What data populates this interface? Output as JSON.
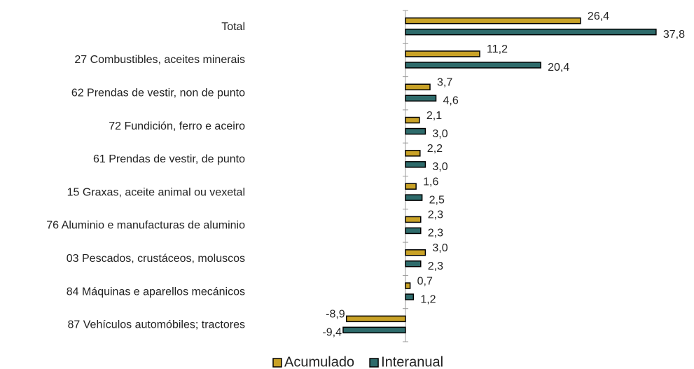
{
  "chart_data": {
    "type": "hbar",
    "categories": [
      "Total",
      "27 Combustibles, aceites minerais",
      "62 Prendas de vestir, non de punto",
      "72 Fundición, ferro e aceiro",
      "61 Prendas de vestir, de punto",
      "15 Graxas, aceite animal ou vexetal",
      "76 Aluminio e manufacturas de aluminio",
      "03 Pescados, crustáceos, moluscos",
      "84 Máquinas e aparellos mecánicos",
      "87 Vehículos automóbiles; tractores"
    ],
    "series": [
      {
        "name": "Acumulado",
        "color": "#c9a227",
        "values": [
          26.4,
          11.2,
          3.7,
          2.1,
          2.2,
          1.6,
          2.3,
          3.0,
          0.7,
          -8.9
        ],
        "value_labels": [
          "26,4",
          "11,2",
          "3,7",
          "2,1",
          "2,2",
          "1,6",
          "2,3",
          "3,0",
          "0,7",
          "-8,9"
        ]
      },
      {
        "name": "Interanual",
        "color": "#2e6b6b",
        "values": [
          37.8,
          20.4,
          4.6,
          3.0,
          3.0,
          2.5,
          2.3,
          2.3,
          1.2,
          -9.4
        ],
        "value_labels": [
          "37,8",
          "20,4",
          "4,6",
          "3,0",
          "3,0",
          "2,5",
          "2,3",
          "2,3",
          "1,2",
          "-9,4"
        ]
      }
    ],
    "xlim": [
      -10,
      40
    ],
    "legend": "bottom"
  }
}
